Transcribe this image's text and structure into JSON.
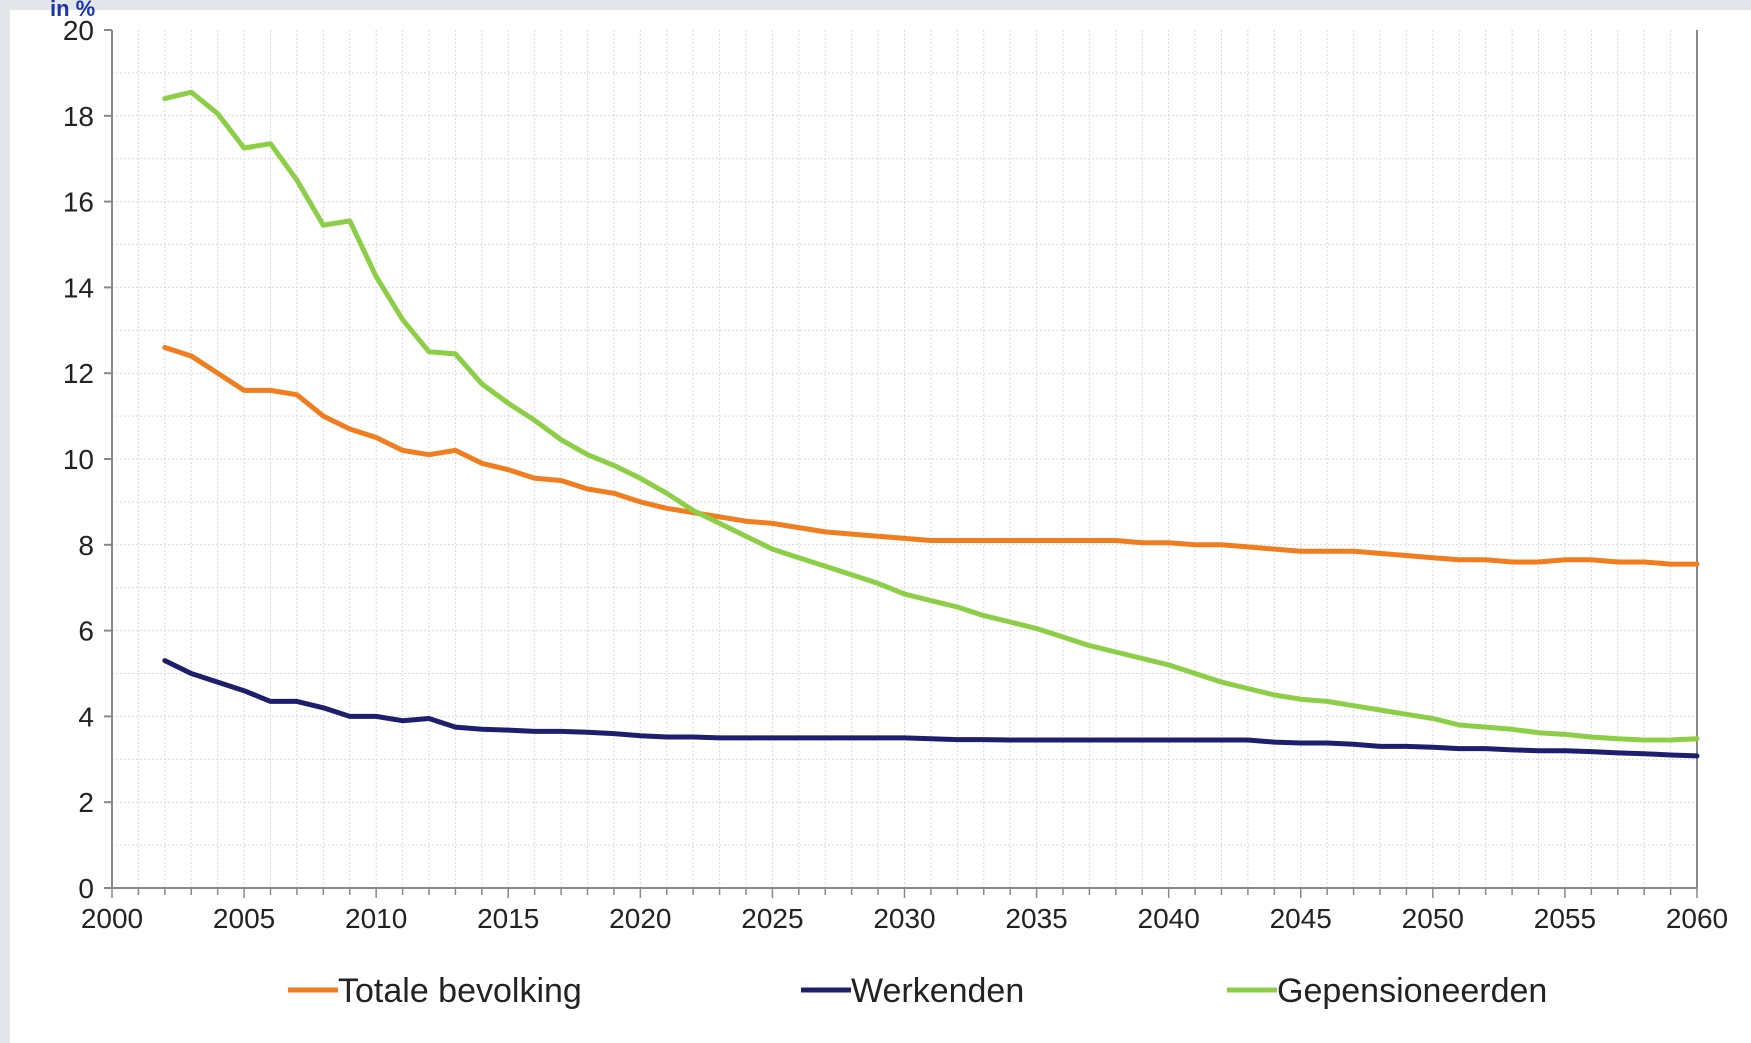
{
  "corner_label": "in %",
  "colors": {
    "background": "#e3e6ea",
    "axis": "#888888",
    "grid": "#d9d9d9",
    "totale": "#f07d1e",
    "werkenden": "#1e1e6e",
    "gepensioneerden": "#8cce46"
  },
  "chart_data": {
    "type": "line",
    "title": "",
    "xlabel": "",
    "ylabel": "in %",
    "xlim": [
      2000,
      2060
    ],
    "ylim": [
      0,
      20
    ],
    "grid": true,
    "legend_position": "bottom",
    "x_ticks": [
      "2000",
      "2005",
      "2010",
      "2015",
      "2020",
      "2025",
      "2030",
      "2035",
      "2040",
      "2045",
      "2050",
      "2055",
      "2060"
    ],
    "y_ticks": [
      "0",
      "2",
      "4",
      "6",
      "8",
      "10",
      "12",
      "14",
      "16",
      "18",
      "20"
    ],
    "x": [
      2002,
      2003,
      2004,
      2005,
      2006,
      2007,
      2008,
      2009,
      2010,
      2011,
      2012,
      2013,
      2014,
      2015,
      2016,
      2017,
      2018,
      2019,
      2020,
      2021,
      2022,
      2023,
      2024,
      2025,
      2026,
      2027,
      2028,
      2029,
      2030,
      2031,
      2032,
      2033,
      2034,
      2035,
      2036,
      2037,
      2038,
      2039,
      2040,
      2041,
      2042,
      2043,
      2044,
      2045,
      2046,
      2047,
      2048,
      2049,
      2050,
      2051,
      2052,
      2053,
      2054,
      2055,
      2056,
      2057,
      2058,
      2059,
      2060
    ],
    "series": [
      {
        "name": "Totale bevolking",
        "color_key": "totale",
        "values": [
          12.6,
          12.4,
          12.0,
          11.6,
          11.6,
          11.5,
          11.0,
          10.7,
          10.5,
          10.2,
          10.1,
          10.2,
          9.9,
          9.75,
          9.55,
          9.5,
          9.3,
          9.2,
          9.0,
          8.85,
          8.75,
          8.65,
          8.55,
          8.5,
          8.4,
          8.3,
          8.25,
          8.2,
          8.15,
          8.1,
          8.1,
          8.1,
          8.1,
          8.1,
          8.1,
          8.1,
          8.1,
          8.05,
          8.05,
          8.0,
          8.0,
          7.95,
          7.9,
          7.85,
          7.85,
          7.85,
          7.8,
          7.75,
          7.7,
          7.65,
          7.65,
          7.6,
          7.6,
          7.65,
          7.65,
          7.6,
          7.6,
          7.55,
          7.55
        ]
      },
      {
        "name": "Werkenden",
        "color_key": "werkenden",
        "values": [
          5.3,
          5.0,
          4.8,
          4.6,
          4.35,
          4.35,
          4.2,
          4.0,
          4.0,
          3.9,
          3.95,
          3.75,
          3.7,
          3.68,
          3.65,
          3.65,
          3.63,
          3.6,
          3.55,
          3.52,
          3.52,
          3.5,
          3.5,
          3.5,
          3.5,
          3.5,
          3.5,
          3.5,
          3.5,
          3.48,
          3.46,
          3.46,
          3.45,
          3.45,
          3.45,
          3.45,
          3.45,
          3.45,
          3.45,
          3.45,
          3.45,
          3.45,
          3.4,
          3.38,
          3.38,
          3.35,
          3.3,
          3.3,
          3.28,
          3.25,
          3.25,
          3.22,
          3.2,
          3.2,
          3.18,
          3.15,
          3.13,
          3.1,
          3.08
        ]
      },
      {
        "name": "Gepensioneerden",
        "color_key": "gepensioneerden",
        "values": [
          18.4,
          18.55,
          18.05,
          17.25,
          17.35,
          16.5,
          15.45,
          15.55,
          14.25,
          13.25,
          12.5,
          12.45,
          11.75,
          11.3,
          10.9,
          10.45,
          10.1,
          9.85,
          9.55,
          9.2,
          8.8,
          8.5,
          8.2,
          7.9,
          7.7,
          7.5,
          7.3,
          7.1,
          6.85,
          6.7,
          6.55,
          6.35,
          6.2,
          6.05,
          5.85,
          5.65,
          5.5,
          5.35,
          5.2,
          5.0,
          4.8,
          4.65,
          4.5,
          4.4,
          4.35,
          4.25,
          4.15,
          4.05,
          3.95,
          3.8,
          3.75,
          3.7,
          3.62,
          3.58,
          3.52,
          3.48,
          3.45,
          3.45,
          3.48
        ]
      }
    ]
  }
}
